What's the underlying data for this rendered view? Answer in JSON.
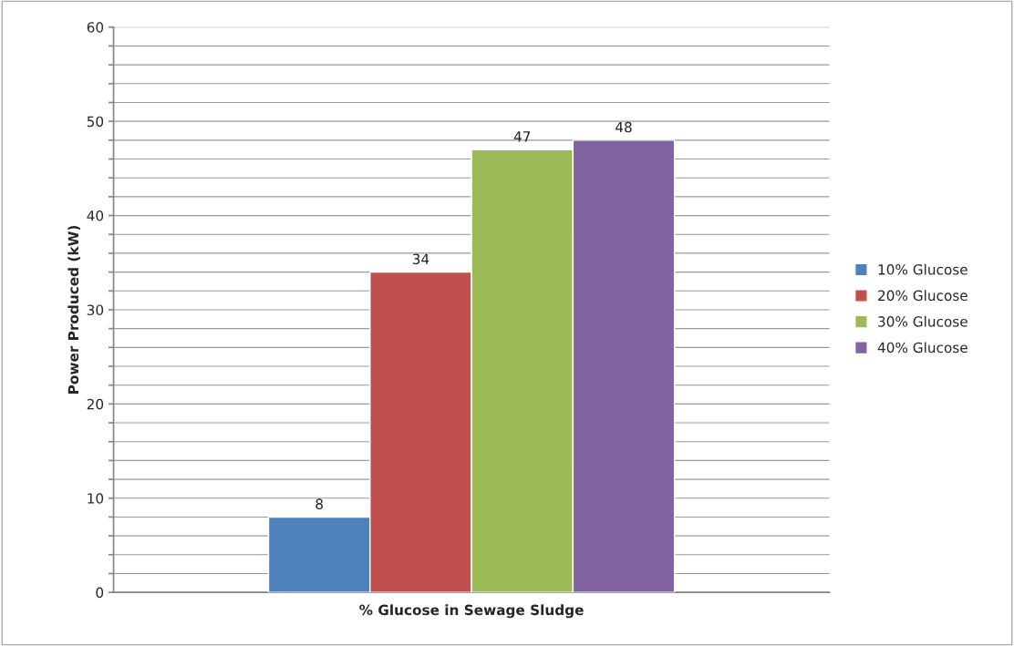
{
  "chart_data": {
    "type": "bar",
    "xlabel": "% Glucose in Sewage Sludge",
    "ylabel": "Power Produced (kW)",
    "categories": [
      null
    ],
    "series": [
      {
        "name": "10% Glucose",
        "color": "#4f81bd",
        "values": [
          8
        ]
      },
      {
        "name": "20% Glucose",
        "color": "#c0504d",
        "values": [
          34
        ]
      },
      {
        "name": "30% Glucose",
        "color": "#9bbb59",
        "values": [
          47
        ]
      },
      {
        "name": "40% Glucose",
        "color": "#8064a2",
        "values": [
          48
        ]
      }
    ],
    "ylim": [
      0,
      60
    ],
    "yticks": [
      0,
      {
        "value": 2,
        "label": null
      },
      {
        "value": 4,
        "label": null
      },
      {
        "value": 6,
        "label": null
      },
      {
        "value": 8,
        "label": null
      },
      10,
      {
        "value": 12,
        "label": null
      },
      {
        "value": 14,
        "label": null
      },
      {
        "value": 16,
        "label": null
      },
      {
        "value": 18,
        "label": null
      },
      20,
      {
        "value": 22,
        "label": null
      },
      {
        "value": 24,
        "label": null
      },
      {
        "value": 26,
        "label": null
      },
      {
        "value": 28,
        "label": null
      },
      30,
      {
        "value": 32,
        "label": null
      },
      {
        "value": 34,
        "label": null
      },
      {
        "value": 36,
        "label": null
      },
      {
        "value": 38,
        "label": null
      },
      40,
      {
        "value": 42,
        "label": null
      },
      {
        "value": 44,
        "label": null
      },
      {
        "value": 46,
        "label": null
      },
      {
        "value": 48,
        "label": null
      },
      50,
      {
        "value": 52,
        "label": null
      },
      {
        "value": 54,
        "label": null
      },
      {
        "value": 56,
        "label": null
      },
      {
        "value": 58,
        "label": null
      },
      60
    ],
    "grid": "y",
    "legend": "right",
    "data_labels": true
  }
}
